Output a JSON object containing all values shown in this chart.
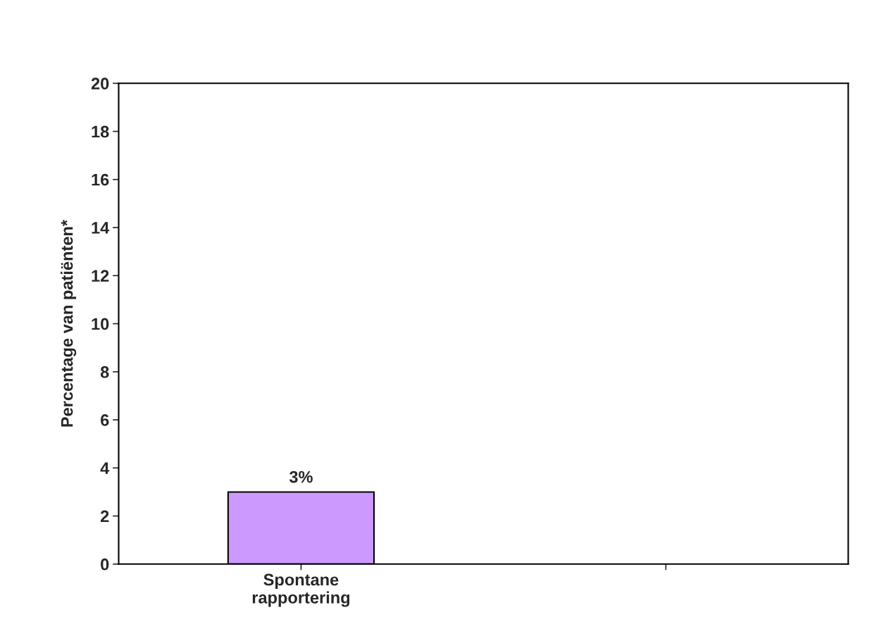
{
  "chart_data": {
    "type": "bar",
    "ylabel": "Percentage van patiënten*",
    "categories": [
      "Spontane rapportering",
      null
    ],
    "values": [
      3,
      null
    ],
    "colors": [
      "#cc99ff",
      null
    ],
    "value_labels": [
      "3%",
      null
    ],
    "ylim": [
      0,
      20
    ],
    "yticks": [
      0,
      2,
      4,
      6,
      8,
      10,
      12,
      14,
      16,
      18,
      20
    ],
    "grid": false,
    "legend": false
  }
}
